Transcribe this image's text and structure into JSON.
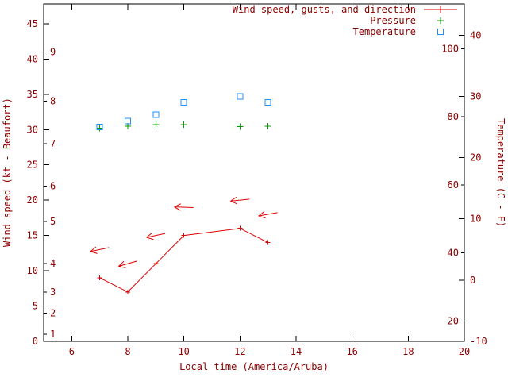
{
  "colors": {
    "background": "#ffffff",
    "text": "#8b0000",
    "border": "#000000",
    "wind": "#dd0000",
    "pressure": "#00a000",
    "temperature": "#1e90ff"
  },
  "chart_data": {
    "type": "line",
    "title": "",
    "legend": [
      {
        "label": "Wind speed, gusts, and direction",
        "series": "wind_speed"
      },
      {
        "label": "Pressure",
        "series": "pressure"
      },
      {
        "label": "Temperature",
        "series": "temperature"
      }
    ],
    "x_axis": {
      "label": "Local time (America/Aruba)",
      "range": [
        5,
        20
      ],
      "ticks": [
        6,
        8,
        10,
        12,
        14,
        16,
        18,
        20
      ]
    },
    "left_axis": {
      "label": "Wind speed (kt - Beaufort)",
      "range_kt": [
        0,
        47.8
      ],
      "kt_ticks": [
        0,
        5,
        10,
        15,
        20,
        25,
        30,
        35,
        40,
        45
      ],
      "beaufort_scale": [
        {
          "bft": 1,
          "kt": 1
        },
        {
          "bft": 2,
          "kt": 4
        },
        {
          "bft": 3,
          "kt": 7
        },
        {
          "bft": 4,
          "kt": 11
        },
        {
          "bft": 5,
          "kt": 17
        },
        {
          "bft": 6,
          "kt": 22
        },
        {
          "bft": 7,
          "kt": 28
        },
        {
          "bft": 8,
          "kt": 34
        },
        {
          "bft": 9,
          "kt": 41
        }
      ]
    },
    "right_axis": {
      "label": "Temperature (C - F)",
      "range_c": [
        -10,
        45.1
      ],
      "c_ticks": [
        -10,
        0,
        10,
        20,
        30,
        40
      ],
      "f_ticks": [
        20,
        40,
        60,
        80,
        100
      ]
    },
    "series": [
      {
        "name": "wind_speed",
        "type": "line",
        "axis": "left",
        "marker": "plus",
        "color": "#dd0000",
        "points": [
          [
            7,
            9
          ],
          [
            8,
            7
          ],
          [
            9,
            11
          ],
          [
            10,
            15
          ],
          [
            12,
            16
          ],
          [
            13,
            14
          ]
        ]
      },
      {
        "name": "wind_gusts_direction",
        "type": "vector",
        "axis": "left",
        "color": "#dd0000",
        "arrows": [
          {
            "x": 7,
            "gust_kt": 13,
            "angle_deg": 192
          },
          {
            "x": 8,
            "gust_kt": 11,
            "angle_deg": 196
          },
          {
            "x": 9,
            "gust_kt": 15,
            "angle_deg": 192
          },
          {
            "x": 10,
            "gust_kt": 19,
            "angle_deg": 178
          },
          {
            "x": 12,
            "gust_kt": 20,
            "angle_deg": 186
          },
          {
            "x": 13,
            "gust_kt": 18,
            "angle_deg": 190
          }
        ]
      },
      {
        "name": "pressure",
        "type": "scatter",
        "axis": "left",
        "marker": "plus",
        "color": "#00a000",
        "points": [
          [
            7,
            30.2
          ],
          [
            8,
            30.5
          ],
          [
            9,
            30.7
          ],
          [
            10,
            30.7
          ],
          [
            12,
            30.4
          ],
          [
            13,
            30.5
          ]
        ]
      },
      {
        "name": "temperature",
        "type": "scatter",
        "axis": "right",
        "marker": "open-square",
        "color": "#1e90ff",
        "points": [
          [
            7,
            25
          ],
          [
            8,
            26
          ],
          [
            9,
            27
          ],
          [
            10,
            29
          ],
          [
            12,
            30
          ],
          [
            13,
            29
          ]
        ]
      }
    ]
  }
}
